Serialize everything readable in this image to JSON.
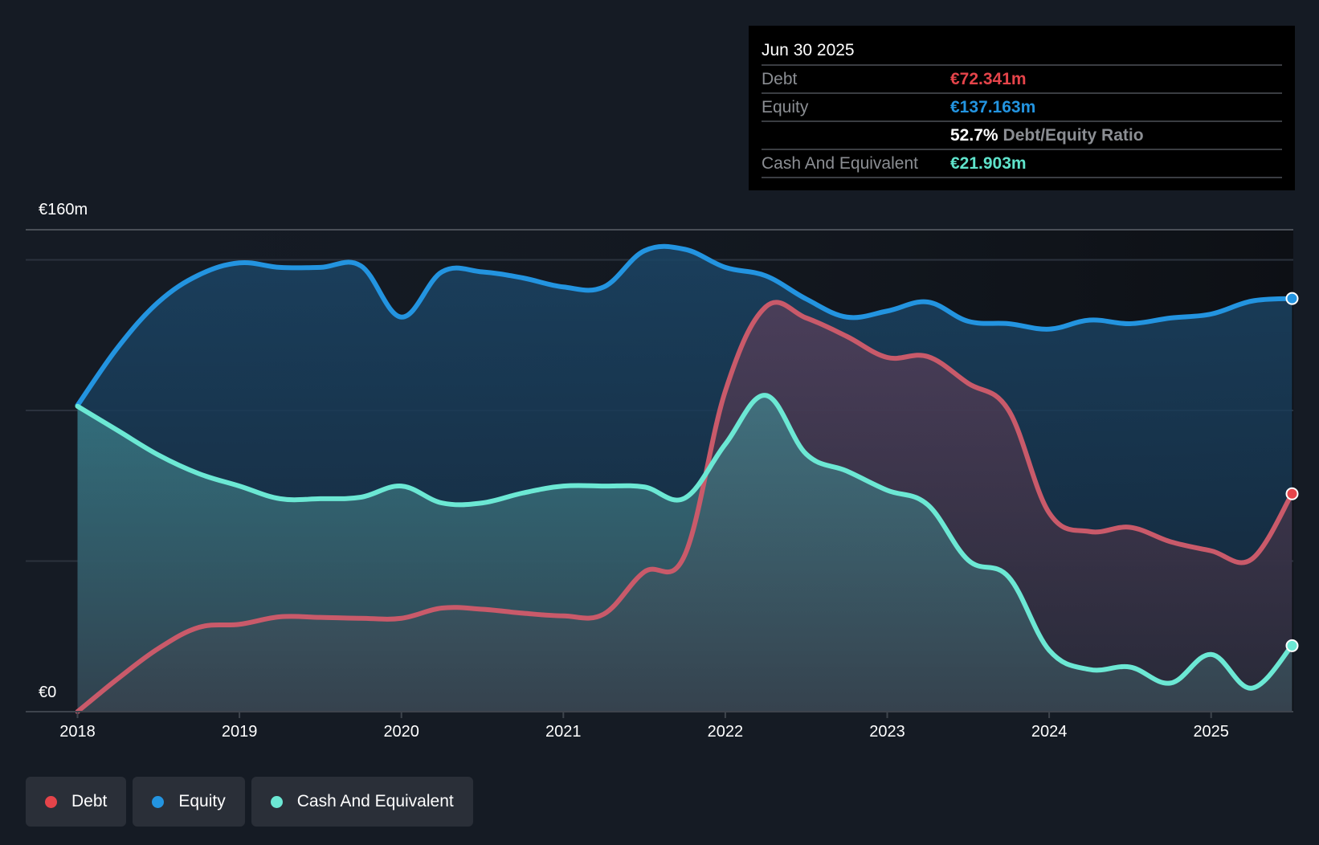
{
  "tooltip": {
    "date": "Jun 30 2025",
    "rows": [
      {
        "label": "Debt",
        "value": "€72.341m",
        "color": "#e5444a"
      },
      {
        "label": "Equity",
        "value": "€137.163m",
        "color": "#2394e0"
      },
      {
        "label": "",
        "ratio_value": "52.7%",
        "ratio_label": "Debt/Equity Ratio"
      },
      {
        "label": "Cash And Equivalent",
        "value": "€21.903m",
        "color": "#5fe3cb"
      }
    ]
  },
  "legend": [
    {
      "label": "Debt",
      "color": "#e5444a"
    },
    {
      "label": "Equity",
      "color": "#2394e0"
    },
    {
      "label": "Cash And Equivalent",
      "color": "#6ce8d4"
    }
  ],
  "chart_data": {
    "type": "area",
    "title": "",
    "xlabel": "",
    "ylabel": "",
    "ylim": [
      0,
      160
    ],
    "y_unit": "€m",
    "yticks": [
      {
        "value": 0,
        "label": "€0"
      },
      {
        "value": 160,
        "label": "€160m"
      }
    ],
    "gridlines": [
      50,
      100,
      150,
      160
    ],
    "xlim": [
      2018.0,
      2025.5
    ],
    "xticks": [
      {
        "value": 2018,
        "label": "2018"
      },
      {
        "value": 2019,
        "label": "2019"
      },
      {
        "value": 2020,
        "label": "2020"
      },
      {
        "value": 2021,
        "label": "2021"
      },
      {
        "value": 2022,
        "label": "2022"
      },
      {
        "value": 2023,
        "label": "2023"
      },
      {
        "value": 2024,
        "label": "2024"
      },
      {
        "value": 2025,
        "label": "2025"
      }
    ],
    "x": [
      2018.0,
      2018.25,
      2018.5,
      2018.75,
      2019.0,
      2019.25,
      2019.5,
      2019.75,
      2020.0,
      2020.25,
      2020.5,
      2020.75,
      2021.0,
      2021.25,
      2021.5,
      2021.75,
      2022.0,
      2022.25,
      2022.5,
      2022.75,
      2023.0,
      2023.25,
      2023.5,
      2023.75,
      2024.0,
      2024.25,
      2024.5,
      2024.75,
      2025.0,
      2025.25,
      2025.5
    ],
    "series": [
      {
        "name": "Equity",
        "color": "#2394e0",
        "values": [
          101.7,
          121,
          136,
          145,
          149,
          147.5,
          147.5,
          148,
          131,
          146,
          146,
          144,
          141,
          141,
          153,
          153.5,
          147.5,
          144.7,
          137,
          131,
          133,
          136,
          129.6,
          128.8,
          127,
          130,
          128.8,
          130.7,
          132,
          136.3,
          137.163
        ]
      },
      {
        "name": "Debt",
        "color": "#e5444a",
        "values": [
          0,
          11,
          21,
          28,
          29,
          31.5,
          31.3,
          31,
          31,
          34.4,
          34,
          32.7,
          31.8,
          32.4,
          46.4,
          52,
          106.4,
          134.4,
          130.7,
          124.6,
          117.6,
          117.9,
          109,
          100,
          66,
          59.8,
          61.2,
          56.4,
          53.4,
          50.6,
          72.341
        ]
      },
      {
        "name": "Cash And Equivalent",
        "color": "#6ce8d4",
        "values": [
          101.4,
          93.3,
          85.2,
          79,
          74.9,
          70.7,
          70.7,
          71.2,
          74.9,
          69.3,
          69.3,
          72.6,
          74.9,
          74.9,
          74.6,
          70.9,
          88.8,
          105,
          85.5,
          79.9,
          73.5,
          68.7,
          50.3,
          44.7,
          20.4,
          14,
          14.8,
          9.5,
          19,
          7.8,
          21.903
        ]
      }
    ],
    "legend_position": "bottom-left"
  }
}
